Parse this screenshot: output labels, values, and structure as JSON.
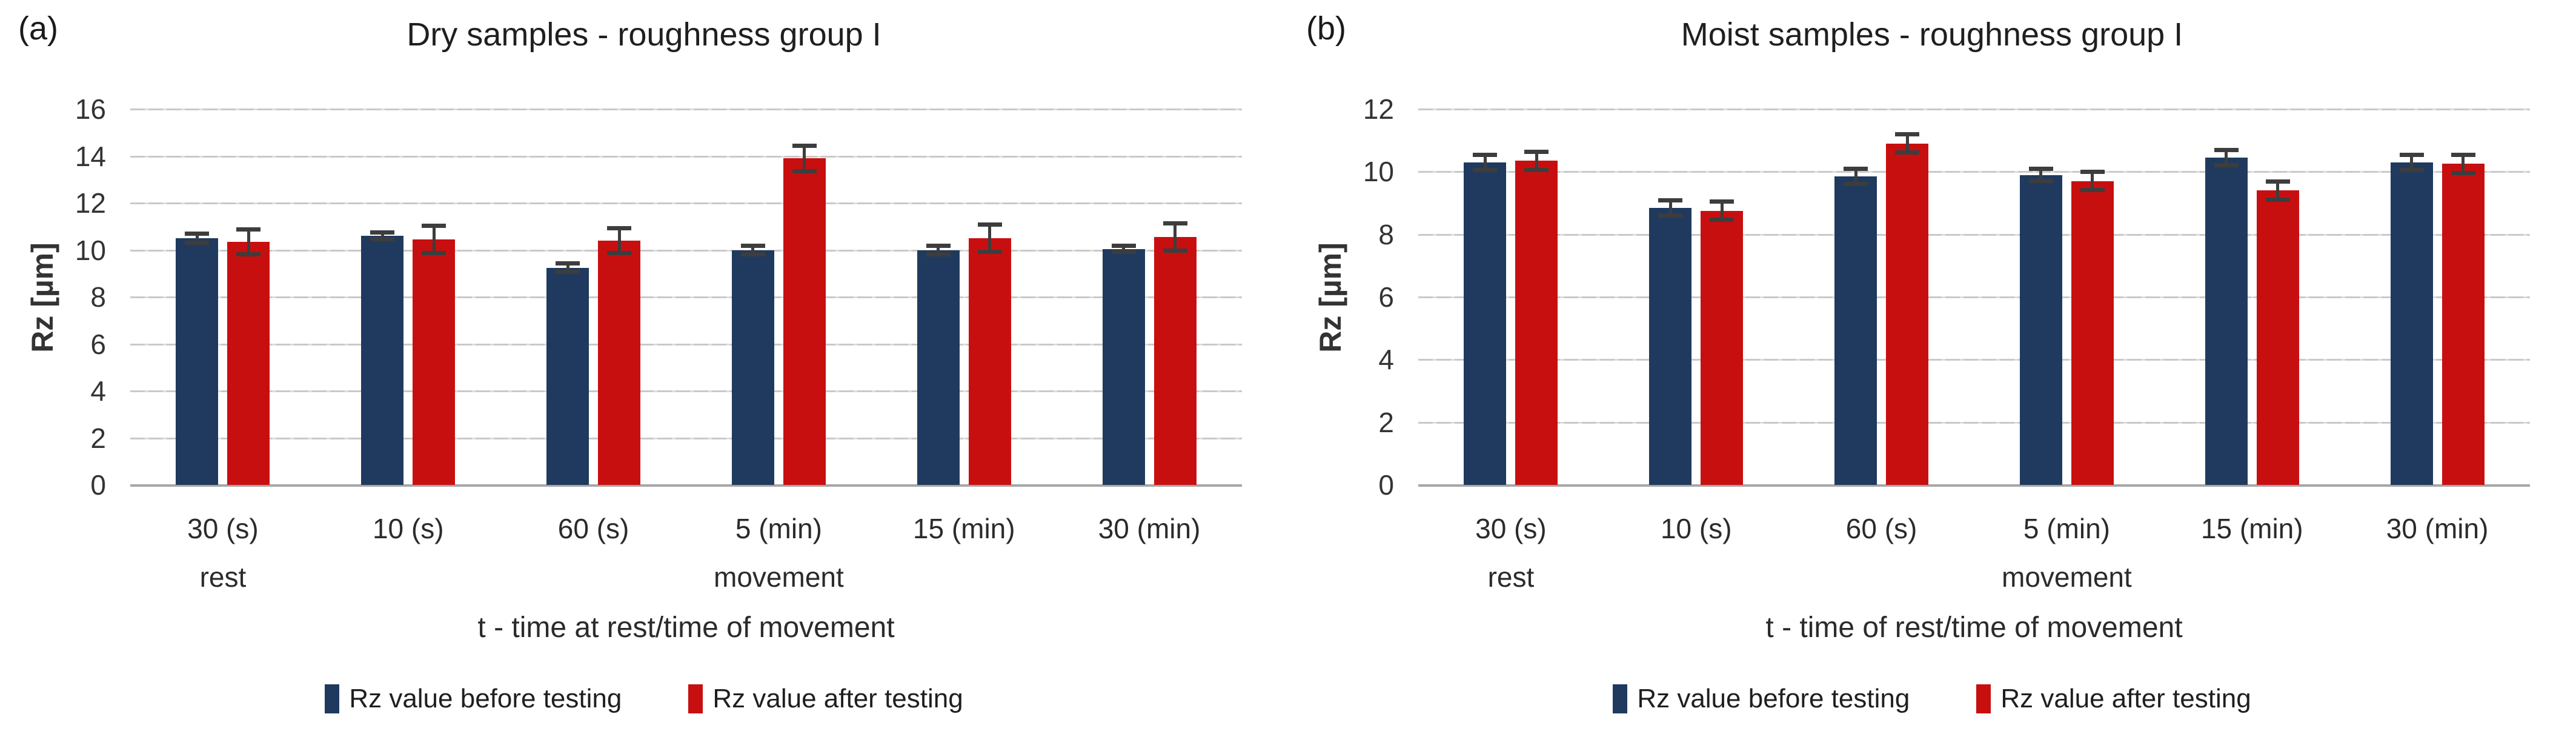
{
  "panel_labels": [
    "(a)",
    "(b)"
  ],
  "colors": {
    "before_series": "#1F3A5E",
    "after_series": "#C80F10",
    "gridline": "#c9c9c9",
    "axis_line": "#a6a6a6",
    "error_bar": "#3d3d3d"
  },
  "chart_data": [
    {
      "type": "bar",
      "panel": "(a)",
      "title": "Dry samples - roughness group I",
      "xlabel": "t - time at rest/time of movement",
      "ylabel": "Rz [µm]",
      "ylim": [
        0,
        16
      ],
      "ytick_step": 2,
      "grid": true,
      "legend_position": "bottom",
      "categories": [
        "30 (s)",
        "10 (s)",
        "60 (s)",
        "5 (min)",
        "15 (min)",
        "30 (min)"
      ],
      "category_sublabels": [
        "rest",
        "",
        "",
        "movement",
        "",
        ""
      ],
      "series": [
        {
          "name": "Rz value before testing",
          "color": "#1F3A5E",
          "values": [
            10.5,
            10.6,
            9.25,
            10.0,
            10.0,
            10.05
          ],
          "errors": [
            0.2,
            0.15,
            0.2,
            0.2,
            0.2,
            0.15
          ]
        },
        {
          "name": "Rz value after testing",
          "color": "#C80F10",
          "values": [
            10.35,
            10.45,
            10.4,
            13.9,
            10.5,
            10.55
          ],
          "errors": [
            0.55,
            0.6,
            0.55,
            0.55,
            0.6,
            0.6
          ]
        }
      ]
    },
    {
      "type": "bar",
      "panel": "(b)",
      "title": "Moist samples - roughness group I",
      "xlabel": "t - time of rest/time of movement",
      "ylabel": "Rz [µm]",
      "ylim": [
        0,
        12
      ],
      "ytick_step": 2,
      "grid": true,
      "legend_position": "bottom",
      "categories": [
        "30 (s)",
        "10 (s)",
        "60 (s)",
        "5 (min)",
        "15 (min)",
        "30 (min)"
      ],
      "category_sublabels": [
        "rest",
        "",
        "",
        "movement",
        "",
        ""
      ],
      "series": [
        {
          "name": "Rz value before testing",
          "color": "#1F3A5E",
          "values": [
            10.3,
            8.85,
            9.85,
            9.9,
            10.45,
            10.3
          ],
          "errors": [
            0.25,
            0.25,
            0.25,
            0.2,
            0.25,
            0.25
          ]
        },
        {
          "name": "Rz value after testing",
          "color": "#C80F10",
          "values": [
            10.35,
            8.75,
            10.9,
            9.7,
            9.4,
            10.25
          ],
          "errors": [
            0.3,
            0.3,
            0.3,
            0.3,
            0.3,
            0.3
          ]
        }
      ]
    }
  ]
}
